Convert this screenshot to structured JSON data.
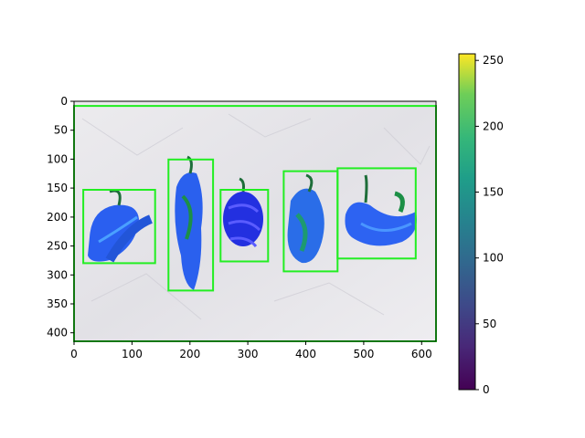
{
  "image": {
    "description_icons": "peppers-photo",
    "x_ticks": [
      "0",
      "100",
      "200",
      "300",
      "400",
      "500",
      "600"
    ],
    "y_ticks": [
      "0",
      "50",
      "100",
      "150",
      "200",
      "250",
      "300",
      "350",
      "400"
    ],
    "boxes": [
      {
        "name": "pepper-box-1",
        "x0": 16,
        "y0": 152,
        "x1": 140,
        "y1": 278
      },
      {
        "name": "pepper-box-2",
        "x0": 163,
        "y0": 100,
        "x1": 240,
        "y1": 325
      },
      {
        "name": "pepper-box-3",
        "x0": 253,
        "y0": 152,
        "x1": 335,
        "y1": 275
      },
      {
        "name": "pepper-box-4",
        "x0": 362,
        "y0": 120,
        "x1": 455,
        "y1": 292
      },
      {
        "name": "pepper-box-5",
        "x0": 455,
        "y0": 115,
        "x1": 590,
        "y1": 270
      },
      {
        "name": "edge-box",
        "x0": 0,
        "y0": 8,
        "x1": 625,
        "y1": 412
      }
    ],
    "box_color": "#22ee22",
    "xlim": [
      0,
      625
    ],
    "ylim": [
      412,
      0
    ]
  },
  "colorbar": {
    "ticks": [
      "0",
      "50",
      "100",
      "150",
      "200",
      "250"
    ],
    "range": [
      0,
      255
    ],
    "colormap": "viridis"
  }
}
